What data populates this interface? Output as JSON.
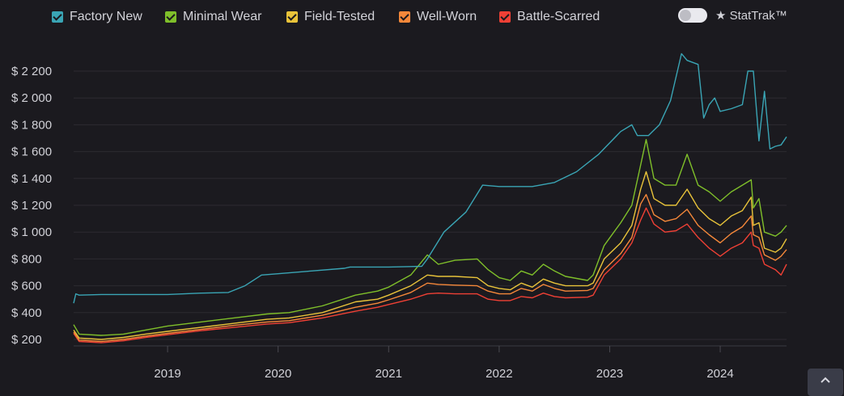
{
  "legend": {
    "items": [
      {
        "label": "Factory New",
        "color": "#3aa5b5"
      },
      {
        "label": "Minimal Wear",
        "color": "#7fbf2a"
      },
      {
        "label": "Field-Tested",
        "color": "#e8c33a"
      },
      {
        "label": "Well-Worn",
        "color": "#f5883a"
      },
      {
        "label": "Battle-Scarred",
        "color": "#ef4035"
      }
    ]
  },
  "stattrak": {
    "label": "★ StatTrak™",
    "enabled": false
  },
  "scroll_top": {
    "icon": "chevron-up-icon"
  },
  "chart_data": {
    "type": "line",
    "ylim": [
      200,
      2300
    ],
    "xlim": [
      2018.15,
      2024.6
    ],
    "yticks": [
      200,
      400,
      600,
      800,
      1000,
      1200,
      1400,
      1600,
      1800,
      2000,
      2200
    ],
    "ytick_labels": [
      "$ 200",
      "$ 400",
      "$ 600",
      "$ 800",
      "$ 1 000",
      "$ 1 200",
      "$ 1 400",
      "$ 1 600",
      "$ 1 800",
      "$ 2 000",
      "$ 2 200"
    ],
    "xticks": [
      2019,
      2020,
      2021,
      2022,
      2023,
      2024
    ],
    "xtick_labels": [
      "2019",
      "2020",
      "2021",
      "2022",
      "2023",
      "2024"
    ],
    "grid": true,
    "series": [
      {
        "name": "Factory New",
        "color": "#3aa5b5",
        "x": [
          2018.15,
          2018.17,
          2018.2,
          2018.4,
          2018.7,
          2019.0,
          2019.3,
          2019.55,
          2019.7,
          2019.85,
          2020.0,
          2020.3,
          2020.6,
          2020.65,
          2021.0,
          2021.3,
          2021.35,
          2021.5,
          2021.7,
          2021.85,
          2022.0,
          2022.3,
          2022.5,
          2022.7,
          2022.9,
          2023.1,
          2023.2,
          2023.25,
          2023.35,
          2023.45,
          2023.55,
          2023.65,
          2023.7,
          2023.8,
          2023.85,
          2023.9,
          2023.95,
          2024.0,
          2024.1,
          2024.2,
          2024.25,
          2024.3,
          2024.35,
          2024.4,
          2024.45,
          2024.5,
          2024.55,
          2024.6
        ],
        "y": [
          470,
          540,
          530,
          535,
          535,
          535,
          545,
          550,
          600,
          680,
          690,
          710,
          730,
          740,
          740,
          745,
          800,
          1000,
          1150,
          1350,
          1340,
          1340,
          1370,
          1450,
          1580,
          1750,
          1800,
          1720,
          1720,
          1800,
          1980,
          2330,
          2280,
          2250,
          1850,
          1950,
          2000,
          1900,
          1920,
          1950,
          2200,
          2200,
          1680,
          2050,
          1620,
          1640,
          1650,
          1710
        ]
      },
      {
        "name": "Minimal Wear",
        "color": "#7fbf2a",
        "x": [
          2018.15,
          2018.2,
          2018.4,
          2018.6,
          2018.8,
          2019.0,
          2019.3,
          2019.6,
          2019.9,
          2020.1,
          2020.4,
          2020.7,
          2020.9,
          2021.0,
          2021.2,
          2021.35,
          2021.45,
          2021.6,
          2021.8,
          2021.9,
          2022.0,
          2022.1,
          2022.2,
          2022.3,
          2022.4,
          2022.5,
          2022.6,
          2022.8,
          2022.85,
          2022.95,
          2023.1,
          2023.2,
          2023.28,
          2023.33,
          2023.4,
          2023.5,
          2023.6,
          2023.7,
          2023.8,
          2023.9,
          2024.0,
          2024.1,
          2024.2,
          2024.28,
          2024.3,
          2024.35,
          2024.4,
          2024.5,
          2024.55,
          2024.6
        ],
        "y": [
          310,
          240,
          230,
          240,
          270,
          300,
          330,
          360,
          390,
          400,
          450,
          530,
          560,
          590,
          680,
          830,
          760,
          790,
          800,
          720,
          660,
          640,
          710,
          680,
          760,
          710,
          670,
          640,
          680,
          900,
          1070,
          1200,
          1500,
          1690,
          1400,
          1350,
          1350,
          1580,
          1350,
          1300,
          1230,
          1300,
          1350,
          1390,
          1180,
          1250,
          1000,
          970,
          1000,
          1050
        ]
      },
      {
        "name": "Field-Tested",
        "color": "#e8c33a",
        "x": [
          2018.15,
          2018.2,
          2018.4,
          2018.6,
          2018.8,
          2019.0,
          2019.3,
          2019.6,
          2019.9,
          2020.1,
          2020.4,
          2020.7,
          2020.9,
          2021.0,
          2021.2,
          2021.35,
          2021.45,
          2021.6,
          2021.8,
          2021.9,
          2022.0,
          2022.1,
          2022.2,
          2022.3,
          2022.4,
          2022.5,
          2022.6,
          2022.8,
          2022.85,
          2022.95,
          2023.1,
          2023.2,
          2023.28,
          2023.33,
          2023.4,
          2023.5,
          2023.6,
          2023.7,
          2023.8,
          2023.9,
          2024.0,
          2024.1,
          2024.2,
          2024.28,
          2024.3,
          2024.35,
          2024.4,
          2024.5,
          2024.55,
          2024.6
        ],
        "y": [
          270,
          210,
          200,
          215,
          240,
          260,
          290,
          320,
          350,
          360,
          400,
          480,
          500,
          530,
          600,
          680,
          670,
          670,
          660,
          600,
          580,
          570,
          620,
          590,
          650,
          620,
          600,
          600,
          620,
          800,
          920,
          1050,
          1320,
          1450,
          1250,
          1200,
          1200,
          1320,
          1180,
          1100,
          1050,
          1120,
          1160,
          1260,
          1050,
          1070,
          880,
          850,
          880,
          950
        ]
      },
      {
        "name": "Well-Worn",
        "color": "#f5883a",
        "x": [
          2018.15,
          2018.2,
          2018.4,
          2018.6,
          2018.8,
          2019.0,
          2019.3,
          2019.6,
          2019.9,
          2020.1,
          2020.4,
          2020.7,
          2020.9,
          2021.0,
          2021.2,
          2021.35,
          2021.45,
          2021.6,
          2021.8,
          2021.9,
          2022.0,
          2022.1,
          2022.2,
          2022.3,
          2022.4,
          2022.5,
          2022.6,
          2022.8,
          2022.85,
          2022.95,
          2023.1,
          2023.2,
          2023.28,
          2023.33,
          2023.4,
          2023.5,
          2023.6,
          2023.7,
          2023.8,
          2023.9,
          2024.0,
          2024.1,
          2024.2,
          2024.28,
          2024.3,
          2024.35,
          2024.4,
          2024.5,
          2024.55,
          2024.6
        ],
        "y": [
          255,
          195,
          185,
          200,
          225,
          245,
          275,
          305,
          330,
          340,
          380,
          440,
          470,
          495,
          550,
          620,
          610,
          605,
          600,
          560,
          540,
          540,
          580,
          560,
          610,
          580,
          560,
          565,
          580,
          720,
          840,
          960,
          1210,
          1280,
          1130,
          1080,
          1100,
          1170,
          1050,
          980,
          920,
          990,
          1040,
          1120,
          980,
          960,
          830,
          790,
          820,
          870
        ]
      },
      {
        "name": "Battle-Scarred",
        "color": "#ef4035",
        "x": [
          2018.15,
          2018.2,
          2018.4,
          2018.6,
          2018.8,
          2019.0,
          2019.3,
          2019.6,
          2019.9,
          2020.1,
          2020.4,
          2020.7,
          2020.9,
          2021.0,
          2021.2,
          2021.35,
          2021.45,
          2021.6,
          2021.8,
          2021.9,
          2022.0,
          2022.1,
          2022.2,
          2022.3,
          2022.4,
          2022.5,
          2022.6,
          2022.8,
          2022.85,
          2022.95,
          2023.1,
          2023.2,
          2023.28,
          2023.33,
          2023.4,
          2023.5,
          2023.6,
          2023.7,
          2023.8,
          2023.9,
          2024.0,
          2024.1,
          2024.2,
          2024.28,
          2024.3,
          2024.35,
          2024.4,
          2024.5,
          2024.55,
          2024.6
        ],
        "y": [
          245,
          185,
          175,
          190,
          215,
          235,
          265,
          290,
          315,
          325,
          360,
          410,
          440,
          460,
          500,
          540,
          545,
          540,
          540,
          500,
          490,
          490,
          520,
          510,
          545,
          520,
          510,
          515,
          530,
          680,
          800,
          920,
          1090,
          1180,
          1060,
          1000,
          1010,
          1060,
          960,
          880,
          820,
          880,
          920,
          1000,
          900,
          880,
          760,
          720,
          680,
          760
        ]
      }
    ]
  }
}
